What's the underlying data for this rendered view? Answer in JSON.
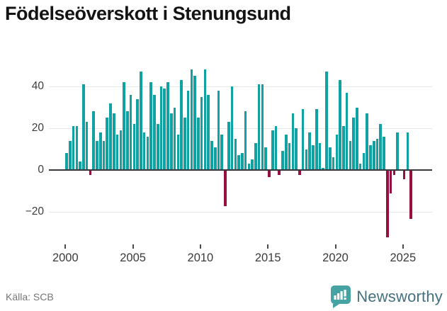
{
  "title": "Födelseöverskott i Stenungsund",
  "footer": {
    "source": "Källa: SCB",
    "brand": "Newsworthy"
  },
  "chart_data": {
    "type": "bar",
    "title": "Födelseöverskott i Stenungsund",
    "xlabel": "",
    "ylabel": "",
    "frequency": "quarterly",
    "start_year": 2000,
    "start_quarter": 1,
    "end_year": 2025,
    "end_quarter": 3,
    "x_tick_labels": [
      "2000",
      "2005",
      "2010",
      "2015",
      "2020",
      "2025"
    ],
    "y_ticks": [
      -20,
      0,
      20,
      40
    ],
    "ylim": [
      -36,
      50
    ],
    "grid": "horizontal",
    "legend": "none",
    "positive_color": "#10a2a2",
    "negative_color": "#970f3f",
    "values": [
      8,
      14,
      21,
      21,
      4,
      41,
      23,
      -2,
      28,
      14,
      18,
      14,
      25,
      32,
      27,
      17,
      19,
      42,
      28,
      36,
      22,
      34,
      47,
      18,
      16,
      42,
      36,
      22,
      40,
      39,
      42,
      27,
      30,
      17,
      43,
      25,
      38,
      48,
      45,
      25,
      35,
      48,
      36,
      14,
      11,
      38,
      17,
      -17,
      23,
      40,
      15,
      7,
      8,
      28,
      3,
      5,
      13,
      41,
      41,
      11,
      -3,
      19,
      21,
      -2,
      9,
      17,
      13,
      27,
      20,
      -2,
      29,
      10,
      18,
      12,
      29,
      13,
      1,
      47,
      11,
      6,
      17,
      43,
      21,
      37,
      14,
      25,
      30,
      3,
      8,
      27,
      12,
      14,
      15,
      22,
      16,
      -32,
      -11,
      -2,
      18,
      0,
      -4,
      18,
      -23
    ]
  }
}
